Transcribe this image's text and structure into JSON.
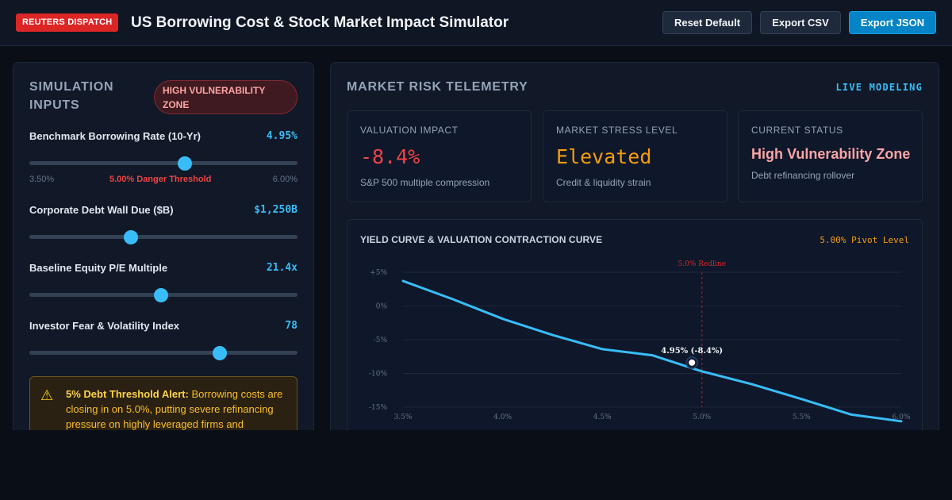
{
  "header": {
    "badge": "REUTERS DISPATCH",
    "title": "US Borrowing Cost & Stock Market Impact Simulator",
    "buttons": {
      "reset": "Reset Default",
      "export_csv": "Export CSV",
      "export_json": "Export JSON"
    }
  },
  "inputs": {
    "title_line1": "SIMULATION",
    "title_line2": "INPUTS",
    "status_pill_line1": "HIGH VULNERABILITY",
    "status_pill_line2": "ZONE",
    "sliders": [
      {
        "label": "Benchmark Borrowing Rate (10-Yr)",
        "value": "4.95%",
        "level": 0.58,
        "min_label": "3.50%",
        "danger_label": "5.00% Danger Threshold",
        "max_label": "6.00%"
      },
      {
        "label": "Corporate Debt Wall Due ($B)",
        "value": "$1,250B",
        "level": 0.38
      },
      {
        "label": "Baseline Equity P/E Multiple",
        "value": "21.4x",
        "level": 0.49
      },
      {
        "label": "Investor Fear & Volatility Index",
        "value": "78",
        "level": 0.71
      }
    ],
    "alert": {
      "icon": "warning-icon",
      "heading": "5% Debt Threshold Alert:",
      "line1": "Borrowing costs are",
      "line2": "closing in on 5.0%, putting severe refinancing",
      "line3": "pressure on highly leveraged firms and"
    }
  },
  "telemetry": {
    "title": "MARKET RISK TELEMETRY",
    "live_tag": "LIVE MODELING",
    "cards": [
      {
        "label": "VALUATION IMPACT",
        "value": "-8.4%",
        "sub": "S&P 500 multiple compression",
        "color": "#ef4444"
      },
      {
        "label": "MARKET STRESS LEVEL",
        "value": "Elevated",
        "sub": "Credit & liquidity strain",
        "color": "#f59e0b"
      },
      {
        "label": "CURRENT STATUS",
        "value": "High Vulnerability Zone",
        "sub": "Debt refinancing rollover",
        "color": "#fca5a5"
      }
    ]
  },
  "chart_data": {
    "type": "line",
    "title": "YIELD CURVE & VALUATION CONTRACTION CURVE",
    "pivot_label": "5.00% Pivot Level",
    "redline_label": "5.0% Redline",
    "redline_x": 5.0,
    "marker": {
      "x": 4.95,
      "y": -8.4,
      "label": "4.95% (-8.4%)"
    },
    "x_ticks": [
      3.5,
      4.0,
      4.5,
      5.0,
      5.5,
      6.0
    ],
    "x_tick_labels": [
      "3.5%",
      "4.0%",
      "4.5%",
      "5.0%",
      "5.5%",
      "6.0%"
    ],
    "y_ticks": [
      5,
      0,
      -5,
      -10,
      -15
    ],
    "y_tick_labels": [
      "+5%",
      "0%",
      "-5%",
      "-10%",
      "-15%"
    ],
    "xlim": [
      3.5,
      6.0
    ],
    "ylim": [
      -15,
      5
    ],
    "grid": true,
    "series": [
      {
        "x": [
          3.5,
          3.75,
          4.0,
          4.25,
          4.5,
          4.75,
          5.0,
          5.25,
          5.5,
          5.75,
          6.0
        ],
        "values": [
          3.7,
          1.0,
          -1.9,
          -4.3,
          -6.4,
          -7.3,
          -9.7,
          -11.6,
          -13.8,
          -16.1,
          -17.1
        ]
      }
    ],
    "line_color": "#38bdf8",
    "redline_color": "#b91c1c"
  }
}
